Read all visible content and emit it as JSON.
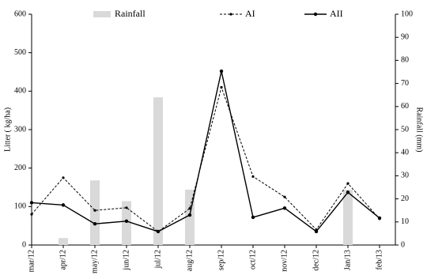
{
  "chart_data": {
    "type": "bar-line",
    "categories": [
      "mar/12",
      "apr/12",
      "may/12",
      "jun/12",
      "jul/12",
      "aug/12",
      "sep/12",
      "oct/12",
      "nov/12",
      "dec/12",
      "Jan/13",
      "feb/13"
    ],
    "series": [
      {
        "name": "Rainfall",
        "type": "bar",
        "axis": "y2",
        "color": "#d9d9d9",
        "values": [
          null,
          3,
          28,
          19,
          64,
          24,
          null,
          null,
          null,
          null,
          24,
          null
        ]
      },
      {
        "name": "AI",
        "type": "line",
        "dash": true,
        "color": "#000000",
        "values": [
          80,
          175,
          90,
          97,
          35,
          95,
          410,
          178,
          125,
          40,
          160,
          68
        ]
      },
      {
        "name": "AII",
        "type": "line",
        "dash": false,
        "color": "#000000",
        "values": [
          110,
          104,
          55,
          62,
          35,
          78,
          452,
          72,
          96,
          35,
          137,
          70
        ]
      }
    ],
    "ylabel": "Litter ( kg/ha)",
    "y2label": "Rainfall (mm)",
    "ylim": [
      0,
      600
    ],
    "yticks": [
      0,
      100,
      200,
      300,
      400,
      500,
      600
    ],
    "y2lim": [
      0,
      100
    ],
    "y2ticks": [
      0,
      10,
      20,
      30,
      40,
      50,
      60,
      70,
      80,
      90,
      100
    ],
    "grid": false,
    "legend": "top"
  }
}
